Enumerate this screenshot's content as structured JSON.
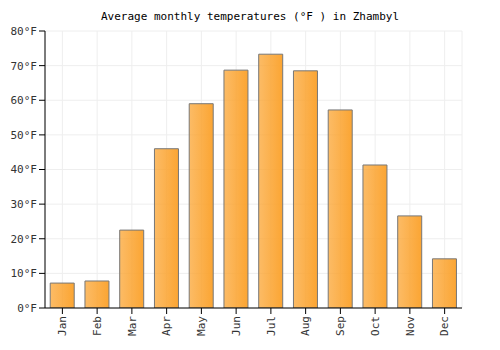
{
  "chart_data": {
    "type": "bar",
    "title": "Average monthly temperatures (°F ) in Zhambyl",
    "categories": [
      "Jan",
      "Feb",
      "Mar",
      "Apr",
      "May",
      "Jun",
      "Jul",
      "Aug",
      "Sep",
      "Oct",
      "Nov",
      "Dec"
    ],
    "values": [
      7.2,
      7.8,
      22.5,
      46,
      59,
      68.7,
      73.3,
      68.5,
      57.2,
      41.3,
      26.6,
      14.2
    ],
    "color": "#fba533",
    "ylim": [
      0,
      80
    ],
    "yticks": [
      {
        "value": 0,
        "label": "0°F"
      },
      {
        "value": 10,
        "label": "10°F"
      },
      {
        "value": 20,
        "label": "20°F"
      },
      {
        "value": 30,
        "label": "30°F"
      },
      {
        "value": 40,
        "label": "40°F"
      },
      {
        "value": 50,
        "label": "50°F"
      },
      {
        "value": 60,
        "label": "60°F"
      },
      {
        "value": 70,
        "label": "70°F"
      },
      {
        "value": 80,
        "label": "80°F"
      }
    ],
    "grid": true
  }
}
